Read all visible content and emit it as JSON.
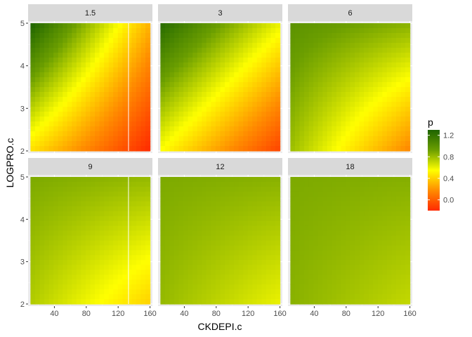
{
  "chart_data": {
    "type": "heatmap",
    "xlabel": "CKDEPI.c",
    "ylabel": "LOGPRO.c",
    "xlim": [
      7,
      163
    ],
    "ylim": [
      1.95,
      5.05
    ],
    "x_ticks": [
      40,
      80,
      120,
      160
    ],
    "y_ticks": [
      2,
      3,
      4,
      5
    ],
    "data_x_range": [
      10,
      160
    ],
    "data_y_range": [
      2,
      5
    ],
    "grid": true,
    "panel_layout": "2 rows x 3 columns facets",
    "legend": {
      "title": "p",
      "placement": "right",
      "ticks": [
        1.2,
        0.8,
        0.4,
        0.0
      ],
      "range": [
        -0.2,
        1.3
      ],
      "colors": [
        "#ff2a00",
        "#ff8c00",
        "#ffff00",
        "#6b9e00",
        "#1e6400"
      ]
    },
    "facets": [
      {
        "label": "1.5",
        "corners": {
          "x_lo_y_lo": 0.45,
          "x_hi_y_lo": -0.2,
          "x_lo_y_hi": 1.3,
          "x_hi_y_hi": 0.3
        },
        "vertical_line_x": 133
      },
      {
        "label": "3",
        "corners": {
          "x_lo_y_lo": 0.55,
          "x_hi_y_lo": -0.1,
          "x_lo_y_hi": 1.25,
          "x_hi_y_hi": 0.6
        }
      },
      {
        "label": "6",
        "corners": {
          "x_lo_y_lo": 0.8,
          "x_hi_y_lo": 0.15,
          "x_lo_y_hi": 1.0,
          "x_hi_y_hi": 0.85
        }
      },
      {
        "label": "9",
        "corners": {
          "x_lo_y_lo": 0.75,
          "x_hi_y_lo": 0.4,
          "x_lo_y_hi": 0.88,
          "x_hi_y_hi": 0.82
        },
        "vertical_line_x": 133
      },
      {
        "label": "12",
        "corners": {
          "x_lo_y_lo": 0.82,
          "x_hi_y_lo": 0.6,
          "x_lo_y_hi": 0.88,
          "x_hi_y_hi": 0.85
        }
      },
      {
        "label": "18",
        "corners": {
          "x_lo_y_lo": 0.85,
          "x_hi_y_lo": 0.7,
          "x_lo_y_hi": 0.88,
          "x_hi_y_hi": 0.86
        }
      }
    ]
  }
}
